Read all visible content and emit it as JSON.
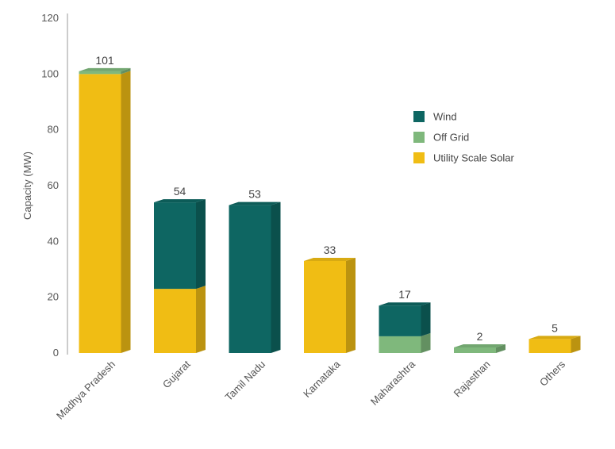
{
  "chart_data": {
    "type": "bar",
    "stacked": true,
    "style": "3d",
    "ylabel": "Capacity (MW)",
    "ylim": [
      0,
      120
    ],
    "yticks": [
      0,
      20,
      40,
      60,
      80,
      100,
      120
    ],
    "categories": [
      "Madhya Pradesh",
      "Gujarat",
      "Tamil Nadu",
      "Karnataka",
      "Maharashtra",
      "Rajasthan",
      "Others"
    ],
    "totals": [
      "101",
      "54",
      "53",
      "33",
      "17",
      "2",
      "5"
    ],
    "series": [
      {
        "name": "Utility Scale Solar",
        "color": "#F0BD14",
        "values": [
          100,
          23,
          0,
          33,
          0,
          0,
          5
        ]
      },
      {
        "name": "Off Grid",
        "color": "#7FB87C",
        "values": [
          1,
          0,
          0,
          0,
          6,
          2,
          0
        ]
      },
      {
        "name": "Wind",
        "color": "#0E6662",
        "values": [
          0,
          31,
          53,
          0,
          11,
          0,
          0
        ]
      }
    ],
    "legend": {
      "position": "right",
      "items": [
        "Wind",
        "Off Grid",
        "Utility Scale Solar"
      ]
    },
    "grid": false
  }
}
